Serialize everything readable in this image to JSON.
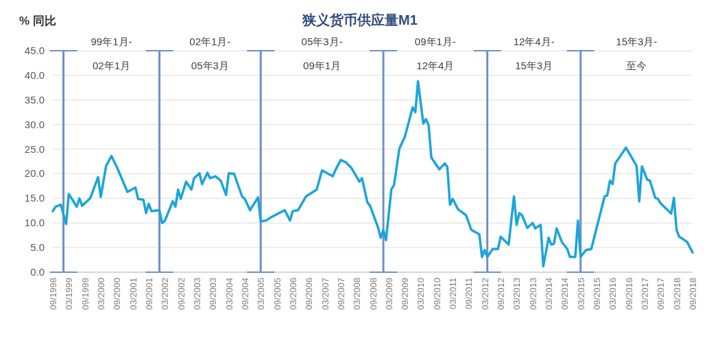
{
  "chart_data": {
    "type": "line",
    "title": "狭义货币供应量M1",
    "ylabel": "% 同比",
    "x": [
      "1998-09",
      "1998-10",
      "1998-12",
      "1999-02",
      "1999-03",
      "1999-06",
      "1999-07",
      "1999-08",
      "1999-11",
      "2000-02",
      "2000-03",
      "2000-05",
      "2000-07",
      "2000-09",
      "2001-01",
      "2001-04",
      "2001-05",
      "2001-07",
      "2001-08",
      "2001-09",
      "2001-10",
      "2002-01",
      "2002-02",
      "2002-03",
      "2002-06",
      "2002-07",
      "2002-08",
      "2002-09",
      "2002-11",
      "2003-01",
      "2003-02",
      "2003-04",
      "2003-05",
      "2003-07",
      "2003-08",
      "2003-10",
      "2003-12",
      "2004-02",
      "2004-03",
      "2004-05",
      "2004-08",
      "2004-09",
      "2004-11",
      "2005-02",
      "2005-03",
      "2005-05",
      "2005-07",
      "2005-12",
      "2006-02",
      "2006-03",
      "2006-05",
      "2006-08",
      "2006-12",
      "2007-02",
      "2007-06",
      "2007-07",
      "2007-09",
      "2007-11",
      "2008-01",
      "2008-04",
      "2008-05",
      "2008-07",
      "2008-08",
      "2008-11",
      "2008-12",
      "2009-01",
      "2009-02",
      "2009-04",
      "2009-05",
      "2009-07",
      "2009-09",
      "2009-12",
      "2010-01",
      "2010-02",
      "2010-04",
      "2010-05",
      "2010-06",
      "2010-07",
      "2010-10",
      "2010-12",
      "2011-01",
      "2011-02",
      "2011-03",
      "2011-05",
      "2011-08",
      "2011-10",
      "2012-01",
      "2012-02",
      "2012-03",
      "2012-04",
      "2012-06",
      "2012-08",
      "2012-09",
      "2012-12",
      "2013-02",
      "2013-03",
      "2013-04",
      "2013-05",
      "2013-07",
      "2013-09",
      "2013-10",
      "2013-12",
      "2014-01",
      "2014-03",
      "2014-04",
      "2014-05",
      "2014-06",
      "2014-08",
      "2014-10",
      "2014-11",
      "2015-01",
      "2015-02",
      "2015-03",
      "2015-05",
      "2015-07",
      "2015-12",
      "2016-01",
      "2016-02",
      "2016-03",
      "2016-04",
      "2016-08",
      "2016-12",
      "2017-01",
      "2017-02",
      "2017-04",
      "2017-05",
      "2017-07",
      "2017-08",
      "2017-09",
      "2018-01",
      "2018-02",
      "2018-03",
      "2018-04",
      "2018-06",
      "2018-07",
      "2018-09"
    ],
    "series": [
      {
        "color": "#1ca5d8",
        "values": [
          12.4,
          13.3,
          13.7,
          9.8,
          15.9,
          13.3,
          15.0,
          13.5,
          15.0,
          19.3,
          15.3,
          21.6,
          23.6,
          21.4,
          16.3,
          17.2,
          14.9,
          14.7,
          12.0,
          13.9,
          12.4,
          12.6,
          10.0,
          10.4,
          14.4,
          13.3,
          16.8,
          14.9,
          18.4,
          16.8,
          19.1,
          20.1,
          17.9,
          20.2,
          19.1,
          19.5,
          18.6,
          15.7,
          20.1,
          20.0,
          15.4,
          14.9,
          12.6,
          15.2,
          10.3,
          10.5,
          11.2,
          12.6,
          10.5,
          12.4,
          12.6,
          15.4,
          16.8,
          20.7,
          19.5,
          20.7,
          22.8,
          22.3,
          21.2,
          18.4,
          19.1,
          14.2,
          13.5,
          9.1,
          7.0,
          8.6,
          6.5,
          16.8,
          17.7,
          25.1,
          27.4,
          33.5,
          32.5,
          38.8,
          30.2,
          31.1,
          29.8,
          23.3,
          20.9,
          22.1,
          21.4,
          13.7,
          14.9,
          12.8,
          11.6,
          8.6,
          7.7,
          3.1,
          4.5,
          3.1,
          4.7,
          4.7,
          7.2,
          5.6,
          15.4,
          9.6,
          12.0,
          11.6,
          9.0,
          10.0,
          8.9,
          9.6,
          1.2,
          7.0,
          5.6,
          5.8,
          8.9,
          6.1,
          4.7,
          3.1,
          3.1,
          10.5,
          3.1,
          4.5,
          4.7,
          15.4,
          15.6,
          18.6,
          17.9,
          22.1,
          25.3,
          21.6,
          14.4,
          21.5,
          18.8,
          18.6,
          15.1,
          14.9,
          14.0,
          11.9,
          15.1,
          8.6,
          7.2,
          6.5,
          6.1,
          4.0
        ]
      }
    ],
    "xlim": [
      "1998-09",
      "2018-09"
    ],
    "xticks": [
      {
        "value": "1998-09",
        "label": "09/1998"
      },
      {
        "value": "1999-03",
        "label": "03/1999"
      },
      {
        "value": "1999-09",
        "label": "09/1999"
      },
      {
        "value": "2000-03",
        "label": "03/2000"
      },
      {
        "value": "2000-09",
        "label": "09/2000"
      },
      {
        "value": "2001-03",
        "label": "03/2001"
      },
      {
        "value": "2001-09",
        "label": "09/2001"
      },
      {
        "value": "2002-03",
        "label": "03/2002"
      },
      {
        "value": "2002-09",
        "label": "09/2002"
      },
      {
        "value": "2003-03",
        "label": "03/2003"
      },
      {
        "value": "2003-09",
        "label": "09/2003"
      },
      {
        "value": "2004-03",
        "label": "03/2004"
      },
      {
        "value": "2004-09",
        "label": "09/2004"
      },
      {
        "value": "2005-03",
        "label": "03/2005"
      },
      {
        "value": "2005-09",
        "label": "09/2005"
      },
      {
        "value": "2006-03",
        "label": "03/2006"
      },
      {
        "value": "2006-09",
        "label": "09/2006"
      },
      {
        "value": "2007-03",
        "label": "03/2007"
      },
      {
        "value": "2007-09",
        "label": "09/2007"
      },
      {
        "value": "2008-03",
        "label": "03/2008"
      },
      {
        "value": "2008-09",
        "label": "09/2008"
      },
      {
        "value": "2009-03",
        "label": "03/2009"
      },
      {
        "value": "2009-09",
        "label": "09/2009"
      },
      {
        "value": "2010-03",
        "label": "03/2010"
      },
      {
        "value": "2010-09",
        "label": "09/2010"
      },
      {
        "value": "2011-03",
        "label": "03/2011"
      },
      {
        "value": "2011-09",
        "label": "09/2011"
      },
      {
        "value": "2012-03",
        "label": "03/2012"
      },
      {
        "value": "2012-09",
        "label": "09/2012"
      },
      {
        "value": "2013-03",
        "label": "03/2013"
      },
      {
        "value": "2013-09",
        "label": "09/2013"
      },
      {
        "value": "2014-03",
        "label": "03/2014"
      },
      {
        "value": "2014-09",
        "label": "09/2014"
      },
      {
        "value": "2015-03",
        "label": "03/2015"
      },
      {
        "value": "2015-09",
        "label": "09/2015"
      },
      {
        "value": "2016-03",
        "label": "03/2016"
      },
      {
        "value": "2016-09",
        "label": "09/2016"
      },
      {
        "value": "2017-03",
        "label": "03/2017"
      },
      {
        "value": "2017-09",
        "label": "09/2017"
      },
      {
        "value": "2018-03",
        "label": "03/2018"
      },
      {
        "value": "2018-09",
        "label": "09/2018"
      }
    ],
    "ylim": [
      0,
      45
    ],
    "yticks": [
      {
        "value": 0,
        "label": "0.0"
      },
      {
        "value": 5,
        "label": "5.0"
      },
      {
        "value": 10,
        "label": "10.0"
      },
      {
        "value": 15,
        "label": "15.0"
      },
      {
        "value": 20,
        "label": "20.0"
      },
      {
        "value": 25,
        "label": "25.0"
      },
      {
        "value": 30,
        "label": "30.0"
      },
      {
        "value": 35,
        "label": "35.0"
      },
      {
        "value": 40,
        "label": "40.0"
      },
      {
        "value": 45,
        "label": "45.0"
      }
    ],
    "grid": "y",
    "ref_lines": [
      {
        "axis": "x",
        "value": "1999-01",
        "color": "#6f8fc8"
      },
      {
        "axis": "x",
        "value": "2002-01",
        "color": "#6f8fc8"
      },
      {
        "axis": "x",
        "value": "2005-03",
        "color": "#6f8fc8"
      },
      {
        "axis": "x",
        "value": "2009-01",
        "color": "#6f8fc8"
      },
      {
        "axis": "x",
        "value": "2012-04",
        "color": "#6f8fc8"
      },
      {
        "axis": "x",
        "value": "2015-03",
        "color": "#6f8fc8"
      }
    ],
    "annotations": [
      "99年1月-02年1月",
      "02年1月-05年3月",
      "05年3月-09年1月",
      "09年1月-12年4月",
      "12年4月-15年3月",
      "15年3月-至今"
    ],
    "line_style": "solid",
    "marker": "none"
  }
}
